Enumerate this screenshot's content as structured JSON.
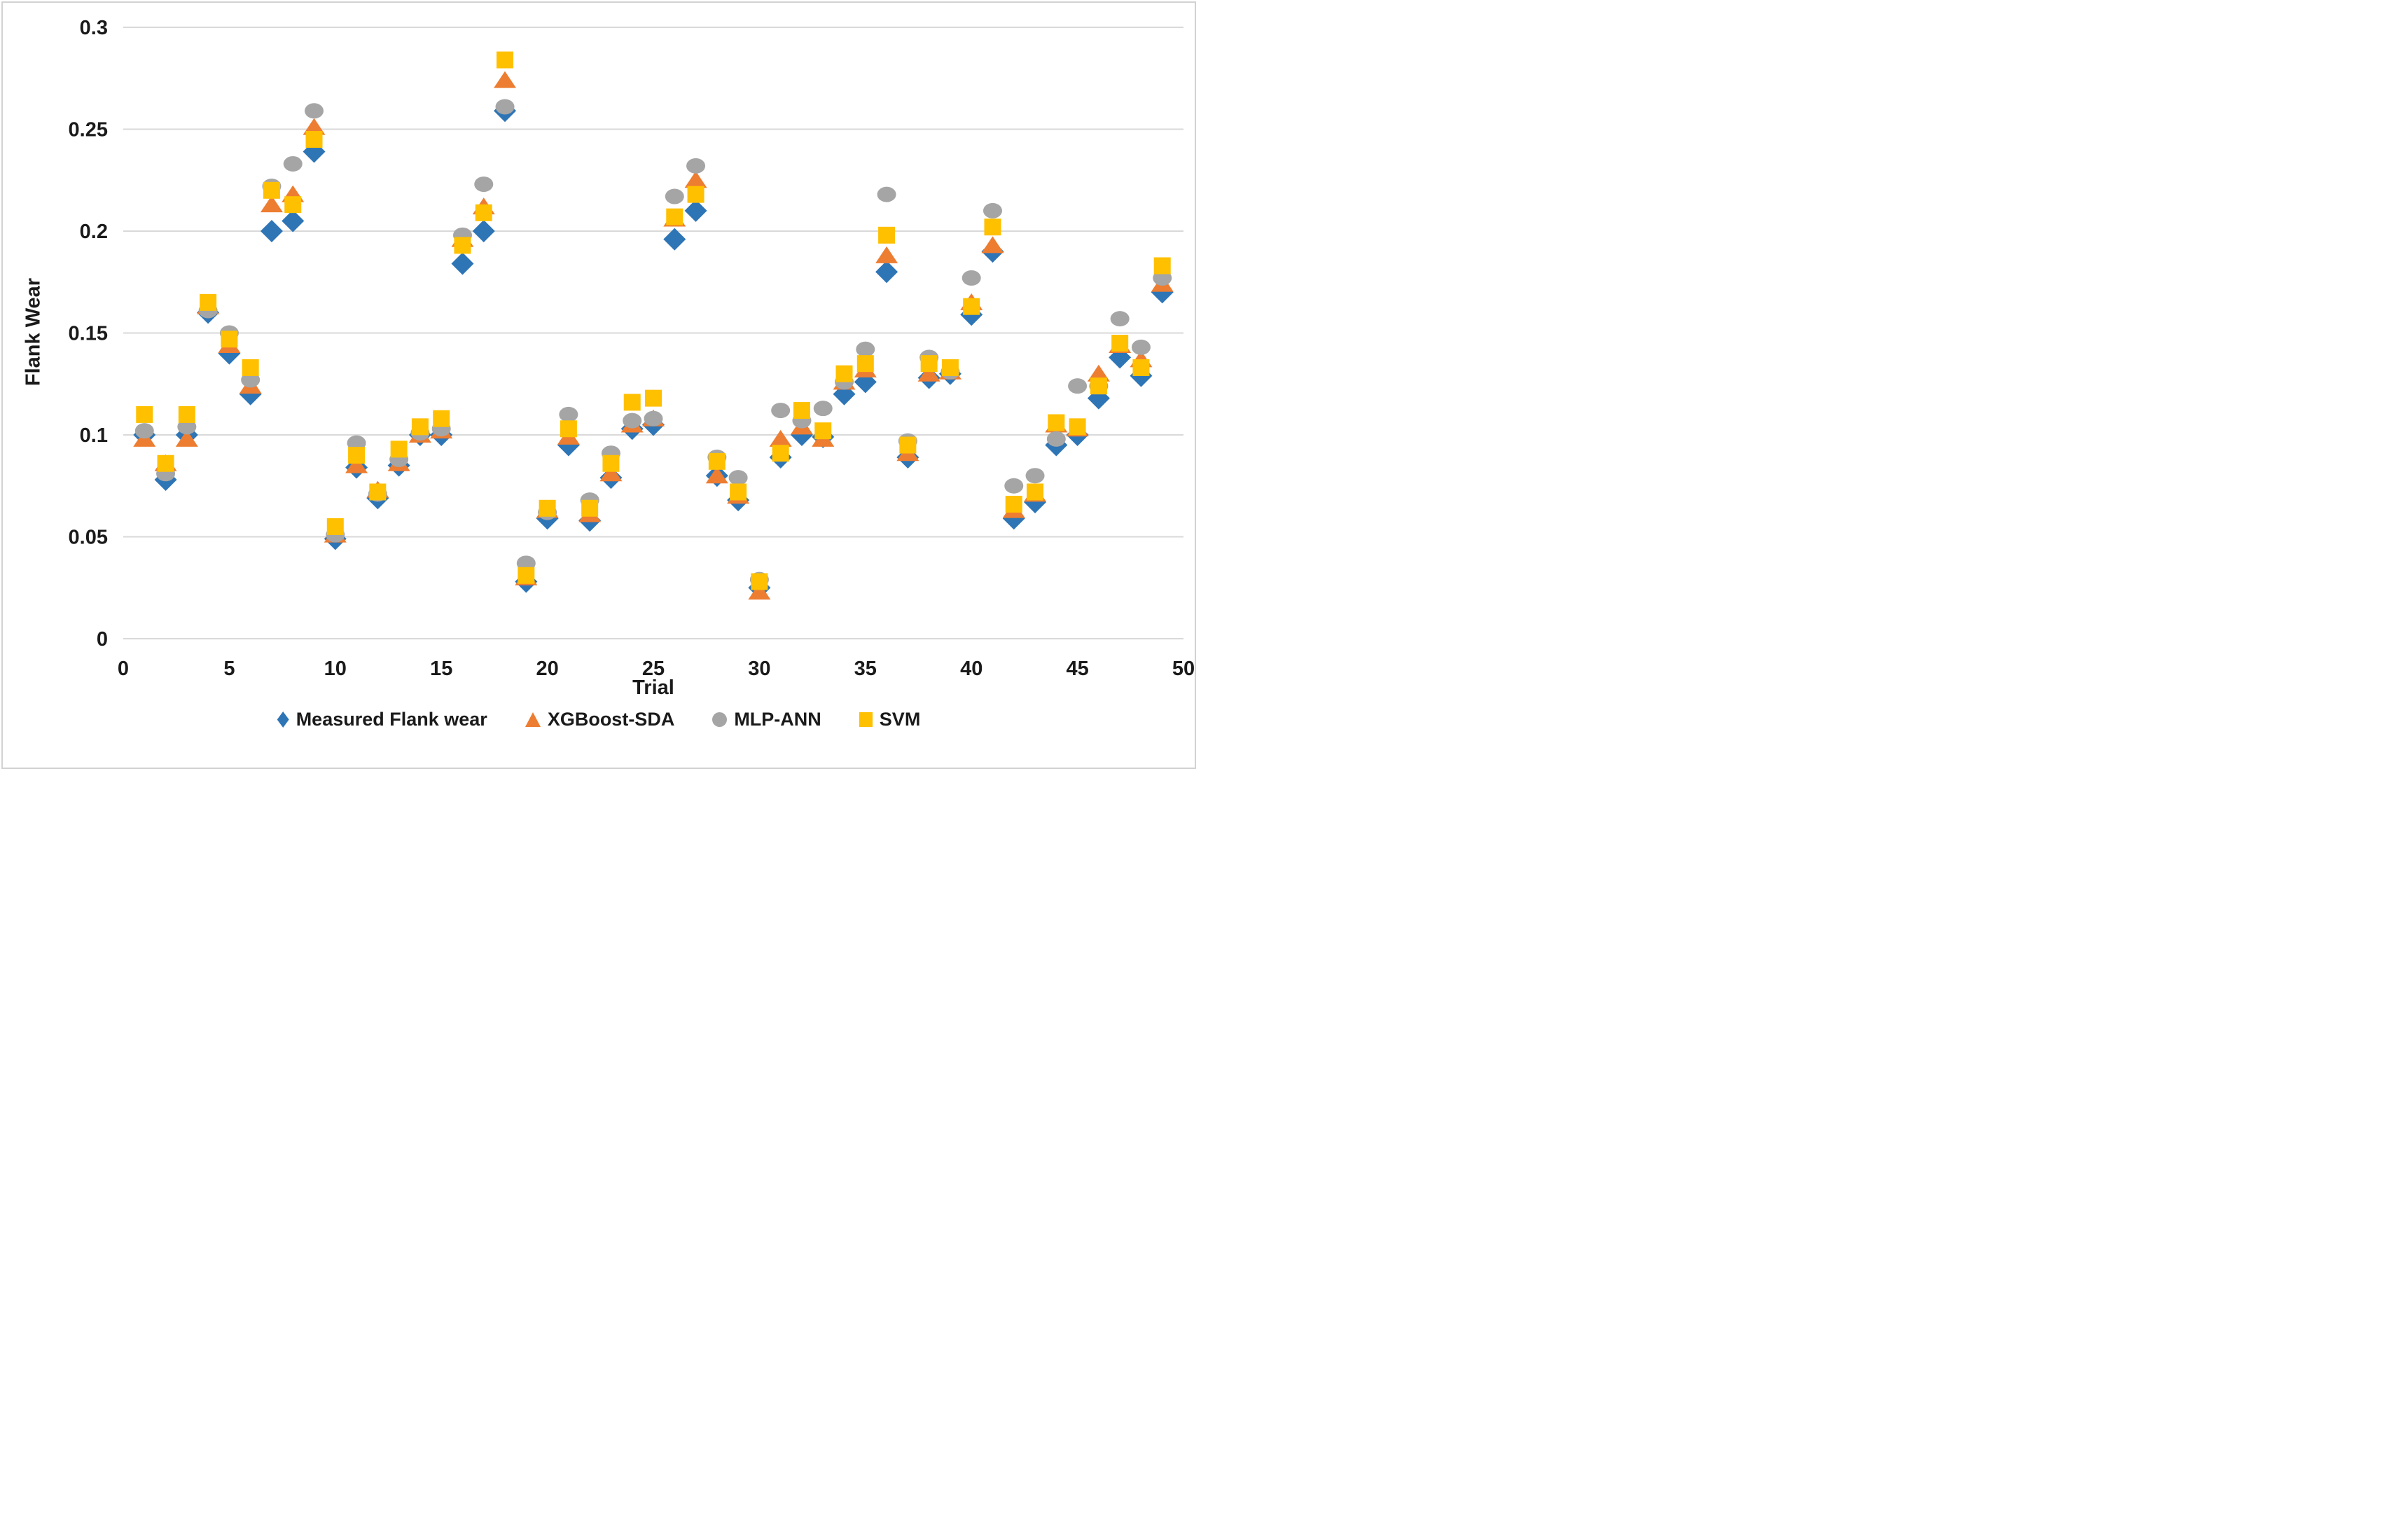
{
  "chart_data": {
    "type": "scatter",
    "title": "",
    "xlabel": "Trial",
    "ylabel": "Flank Wear",
    "xlim": [
      0,
      50
    ],
    "ylim": [
      0,
      0.3
    ],
    "x_ticks": [
      "0",
      "5",
      "10",
      "15",
      "20",
      "25",
      "30",
      "35",
      "40",
      "45",
      "50"
    ],
    "y_ticks": [
      "0",
      "0.05",
      "0.1",
      "0.15",
      "0.2",
      "0.25",
      "0.3"
    ],
    "grid": "horizontal-only",
    "gridline_color": "#d9d9d9",
    "legend_position": "bottom",
    "x": [
      1,
      2,
      3,
      4,
      5,
      6,
      7,
      8,
      9,
      10,
      11,
      12,
      13,
      14,
      15,
      16,
      17,
      18,
      19,
      20,
      21,
      22,
      23,
      24,
      25,
      26,
      27,
      28,
      29,
      30,
      31,
      32,
      33,
      34,
      35,
      36,
      37,
      38,
      39,
      40,
      41,
      42,
      43,
      44,
      45,
      46,
      47,
      48,
      49
    ],
    "series": [
      {
        "name": "Measured Flank wear",
        "marker": "diamond",
        "color": "#2E75B6",
        "values": [
          0.1,
          0.078,
          0.1,
          0.16,
          0.14,
          0.12,
          0.2,
          0.205,
          0.239,
          0.049,
          0.084,
          0.069,
          0.085,
          0.1,
          0.1,
          0.184,
          0.2,
          0.259,
          0.028,
          0.059,
          0.095,
          0.058,
          0.079,
          0.103,
          0.105,
          0.196,
          0.21,
          0.08,
          0.068,
          0.025,
          0.089,
          0.1,
          0.099,
          0.12,
          0.126,
          0.18,
          0.089,
          0.128,
          0.13,
          0.159,
          0.19,
          0.059,
          0.067,
          0.095,
          0.1,
          0.118,
          0.138,
          0.129,
          0.17
        ]
      },
      {
        "name": "XGBoost-SDA",
        "marker": "triangle",
        "color": "#ED7D31",
        "values": [
          0.098,
          0.086,
          0.098,
          0.163,
          0.144,
          0.124,
          0.213,
          0.218,
          0.251,
          0.051,
          0.085,
          0.073,
          0.086,
          0.1,
          0.102,
          0.196,
          0.212,
          0.274,
          0.03,
          0.063,
          0.099,
          0.061,
          0.081,
          0.105,
          0.108,
          0.206,
          0.225,
          0.08,
          0.07,
          0.023,
          0.098,
          0.104,
          0.098,
          0.126,
          0.132,
          0.188,
          0.091,
          0.13,
          0.131,
          0.165,
          0.193,
          0.063,
          0.071,
          0.105,
          0.103,
          0.13,
          0.144,
          0.137,
          0.174
        ]
      },
      {
        "name": "MLP-ANN",
        "marker": "circle",
        "color": "#A5A5A5",
        "values": [
          0.102,
          0.081,
          0.104,
          0.161,
          0.15,
          0.127,
          0.222,
          0.233,
          0.259,
          0.051,
          0.096,
          0.071,
          0.088,
          0.101,
          0.103,
          0.198,
          0.223,
          0.261,
          0.037,
          0.062,
          0.11,
          0.068,
          0.091,
          0.107,
          0.108,
          0.217,
          0.232,
          0.089,
          0.079,
          0.029,
          0.112,
          0.107,
          0.113,
          0.126,
          0.142,
          0.218,
          0.097,
          0.138,
          0.131,
          0.177,
          0.21,
          0.075,
          0.08,
          0.098,
          0.124,
          0.124,
          0.157,
          0.143,
          0.177
        ]
      },
      {
        "name": "SVM",
        "marker": "square",
        "color": "#FFC000",
        "values": [
          0.11,
          0.086,
          0.11,
          0.165,
          0.147,
          0.133,
          0.22,
          0.213,
          0.245,
          0.055,
          0.09,
          0.072,
          0.093,
          0.104,
          0.108,
          0.193,
          0.209,
          0.284,
          0.031,
          0.064,
          0.103,
          0.064,
          0.086,
          0.116,
          0.118,
          0.207,
          0.218,
          0.087,
          0.072,
          0.028,
          0.091,
          0.112,
          0.102,
          0.13,
          0.135,
          0.198,
          0.095,
          0.135,
          0.133,
          0.163,
          0.202,
          0.066,
          0.072,
          0.106,
          0.104,
          0.124,
          0.145,
          0.133,
          0.183
        ]
      }
    ]
  }
}
